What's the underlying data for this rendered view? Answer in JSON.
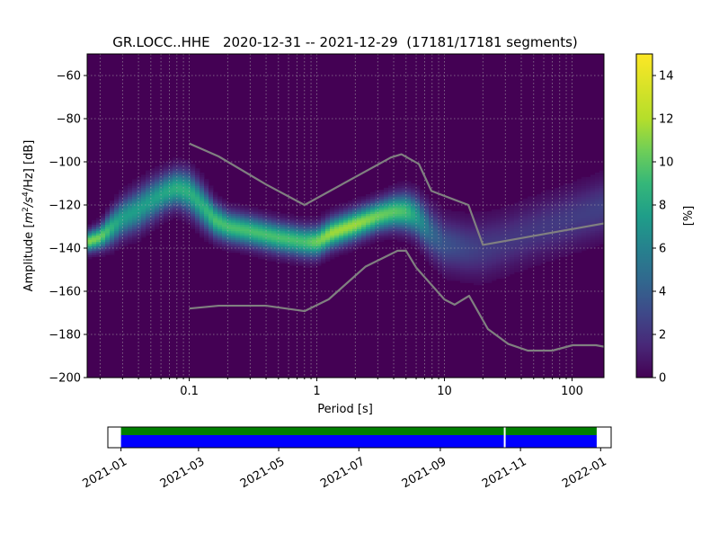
{
  "chart_data": {
    "type": "heatmap",
    "title": "GR.LOCC..HHE   2020-12-31 -- 2021-12-29  (17181/17181 segments)",
    "xlabel": "Period [s]",
    "ylabel_prefix": "Amplitude [",
    "ylabel_unit_m": "m",
    "ylabel_unit_exp2": "2",
    "ylabel_unit_s": "/s",
    "ylabel_unit_exp4": "4",
    "ylabel_unit_hz": "/Hz] [dB]",
    "x_scale": "log",
    "xlim": [
      0.01585,
      177.8
    ],
    "ylim": [
      -200,
      -50
    ],
    "x_ticks": [
      {
        "value": 0.1,
        "label": "0.1"
      },
      {
        "value": 1,
        "label": "1"
      },
      {
        "value": 10,
        "label": "10"
      },
      {
        "value": 100,
        "label": "100"
      }
    ],
    "y_ticks": [
      {
        "value": -60,
        "label": "−60"
      },
      {
        "value": -80,
        "label": "−80"
      },
      {
        "value": -100,
        "label": "−100"
      },
      {
        "value": -120,
        "label": "−120"
      },
      {
        "value": -140,
        "label": "−140"
      },
      {
        "value": -160,
        "label": "−160"
      },
      {
        "value": -180,
        "label": "−180"
      },
      {
        "value": -200,
        "label": "−200"
      }
    ],
    "grid": true,
    "colormap": "viridis",
    "background_color": "#440154",
    "colorbar": {
      "label": "[%]",
      "range": [
        0,
        15
      ],
      "ticks": [
        {
          "value": 0,
          "label": "0"
        },
        {
          "value": 2,
          "label": "2"
        },
        {
          "value": 4,
          "label": "4"
        },
        {
          "value": 6,
          "label": "6"
        },
        {
          "value": 8,
          "label": "8"
        },
        {
          "value": 10,
          "label": "10"
        },
        {
          "value": 12,
          "label": "12"
        },
        {
          "value": 14,
          "label": "14"
        }
      ]
    },
    "density_ridge": [
      {
        "period": 0.0159,
        "db": -137,
        "peak": 11.0,
        "width": 3.0
      },
      {
        "period": 0.02,
        "db": -135,
        "peak": 10.5,
        "width": 3.5
      },
      {
        "period": 0.025,
        "db": -130,
        "peak": 8.5,
        "width": 5.0
      },
      {
        "period": 0.03,
        "db": -126,
        "peak": 7.5,
        "width": 5.5
      },
      {
        "period": 0.04,
        "db": -122,
        "peak": 7.5,
        "width": 6.0
      },
      {
        "period": 0.05,
        "db": -118,
        "peak": 7.5,
        "width": 6.0
      },
      {
        "period": 0.065,
        "db": -114,
        "peak": 8.0,
        "width": 5.5
      },
      {
        "period": 0.08,
        "db": -112,
        "peak": 8.5,
        "width": 5.5
      },
      {
        "period": 0.1,
        "db": -114,
        "peak": 8.5,
        "width": 6.0
      },
      {
        "period": 0.125,
        "db": -120,
        "peak": 8.5,
        "width": 6.0
      },
      {
        "period": 0.16,
        "db": -127,
        "peak": 9.5,
        "width": 5.0
      },
      {
        "period": 0.2,
        "db": -130,
        "peak": 9.5,
        "width": 4.5
      },
      {
        "period": 0.3,
        "db": -132,
        "peak": 9.5,
        "width": 4.5
      },
      {
        "period": 0.5,
        "db": -135,
        "peak": 9.5,
        "width": 4.5
      },
      {
        "period": 0.8,
        "db": -137,
        "peak": 9.5,
        "width": 4.5
      },
      {
        "period": 1.0,
        "db": -137,
        "peak": 10.5,
        "width": 4.5
      },
      {
        "period": 1.3,
        "db": -133,
        "peak": 11.5,
        "width": 4.5
      },
      {
        "period": 2.0,
        "db": -129,
        "peak": 11.5,
        "width": 4.5
      },
      {
        "period": 3.0,
        "db": -125,
        "peak": 10.5,
        "width": 4.5
      },
      {
        "period": 4.0,
        "db": -123,
        "peak": 10.0,
        "width": 5.0
      },
      {
        "period": 5.0,
        "db": -123,
        "peak": 9.5,
        "width": 5.5
      },
      {
        "period": 6.0,
        "db": -125,
        "peak": 7.5,
        "width": 6.0
      },
      {
        "period": 8.0,
        "db": -133,
        "peak": 4.5,
        "width": 7.0
      },
      {
        "period": 10.0,
        "db": -138,
        "peak": 3.5,
        "width": 7.5
      },
      {
        "period": 15.0,
        "db": -140,
        "peak": 2.8,
        "width": 8.0
      },
      {
        "period": 20.0,
        "db": -140,
        "peak": 2.4,
        "width": 8.5
      },
      {
        "period": 30.0,
        "db": -137,
        "peak": 2.2,
        "width": 8.5
      },
      {
        "period": 50.0,
        "db": -132,
        "peak": 2.2,
        "width": 8.5
      },
      {
        "period": 100.0,
        "db": -126,
        "peak": 2.4,
        "width": 8.5
      },
      {
        "period": 177.8,
        "db": -121,
        "peak": 2.6,
        "width": 8.5
      }
    ],
    "noise_models": [
      {
        "points": [
          [
            0.1,
            -91.5
          ],
          [
            0.17,
            -97.5
          ],
          [
            0.4,
            -110.5
          ],
          [
            0.8,
            -120
          ],
          [
            3.8,
            -98
          ],
          [
            4.6,
            -96.5
          ],
          [
            6.3,
            -101
          ],
          [
            7.9,
            -113.5
          ],
          [
            15.4,
            -120
          ],
          [
            20,
            -138.5
          ],
          [
            180,
            -128.5
          ]
        ]
      },
      {
        "points": [
          [
            0.1,
            -168
          ],
          [
            0.17,
            -166.7
          ],
          [
            0.4,
            -166.7
          ],
          [
            0.8,
            -169.2
          ],
          [
            1.24,
            -163.7
          ],
          [
            2.4,
            -148.6
          ],
          [
            4.3,
            -141.2
          ],
          [
            5,
            -141.2
          ],
          [
            6,
            -149
          ],
          [
            10,
            -163.8
          ],
          [
            12,
            -166.2
          ],
          [
            15.6,
            -162.1
          ],
          [
            21.9,
            -177.5
          ],
          [
            31.6,
            -184.4
          ],
          [
            45,
            -187.5
          ],
          [
            70,
            -187.5
          ],
          [
            101,
            -185
          ],
          [
            154,
            -185
          ],
          [
            179,
            -185.7
          ]
        ]
      }
    ],
    "vertical_grid_periods": [
      0.02,
      0.03,
      0.04,
      0.05,
      0.06,
      0.07,
      0.08,
      0.09,
      0.1,
      0.2,
      0.3,
      0.4,
      0.5,
      0.6,
      0.7,
      0.8,
      0.9,
      1,
      2,
      3,
      4,
      5,
      6,
      7,
      8,
      9,
      10,
      20,
      30,
      40,
      50,
      60,
      70,
      80,
      90,
      100
    ],
    "coverage": {
      "start": "2021-01-01",
      "end": "2021-12-29",
      "gap_date": "2021-10-20",
      "axis_range": [
        "2020-12-22",
        "2022-01-09"
      ],
      "data_color": "#008000",
      "psd_color": "#0000ff",
      "ticks": [
        {
          "date": "2021-01-01",
          "label": "2021-01"
        },
        {
          "date": "2021-03-01",
          "label": "2021-03"
        },
        {
          "date": "2021-05-01",
          "label": "2021-05"
        },
        {
          "date": "2021-07-01",
          "label": "2021-07"
        },
        {
          "date": "2021-09-01",
          "label": "2021-09"
        },
        {
          "date": "2021-11-01",
          "label": "2021-11"
        },
        {
          "date": "2022-01-01",
          "label": "2022-01"
        }
      ]
    }
  }
}
